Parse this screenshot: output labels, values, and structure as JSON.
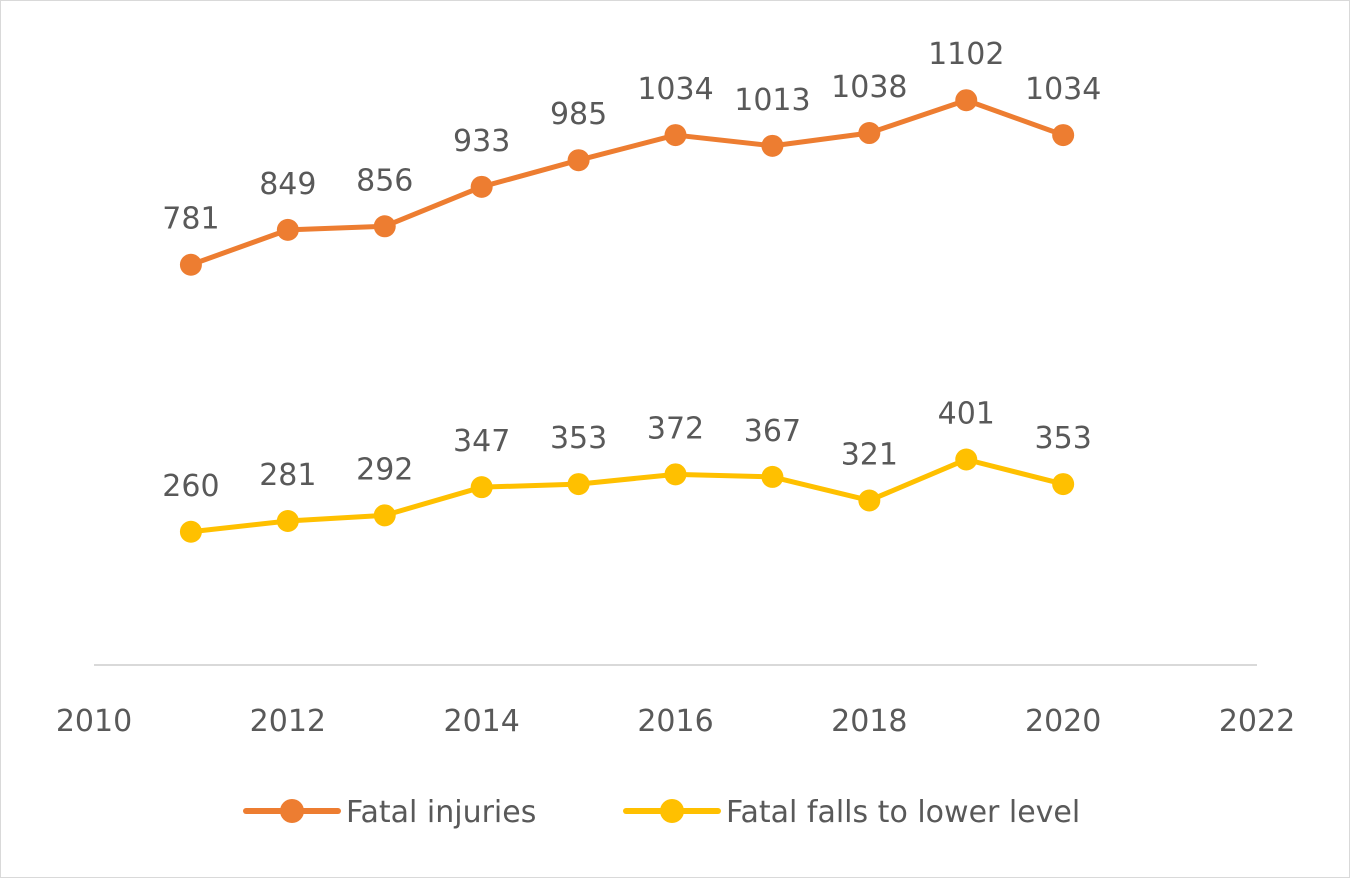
{
  "chart_data": {
    "type": "line",
    "title": "",
    "xlabel": "",
    "ylabel": "",
    "xlim": [
      2010,
      2022
    ],
    "ylim": [
      0,
      1200
    ],
    "x_ticks": [
      2010,
      2012,
      2014,
      2016,
      2018,
      2020,
      2022
    ],
    "grid": false,
    "legend_position": "bottom",
    "x": [
      2011,
      2012,
      2013,
      2014,
      2015,
      2016,
      2017,
      2018,
      2019,
      2020
    ],
    "series": [
      {
        "name": "Fatal injuries",
        "color": "#ED7D31",
        "values": [
          781,
          849,
          856,
          933,
          985,
          1034,
          1013,
          1038,
          1102,
          1034
        ]
      },
      {
        "name": "Fatal falls to lower level",
        "color": "#FFC000",
        "values": [
          260,
          281,
          292,
          347,
          353,
          372,
          367,
          321,
          401,
          353
        ]
      }
    ]
  }
}
